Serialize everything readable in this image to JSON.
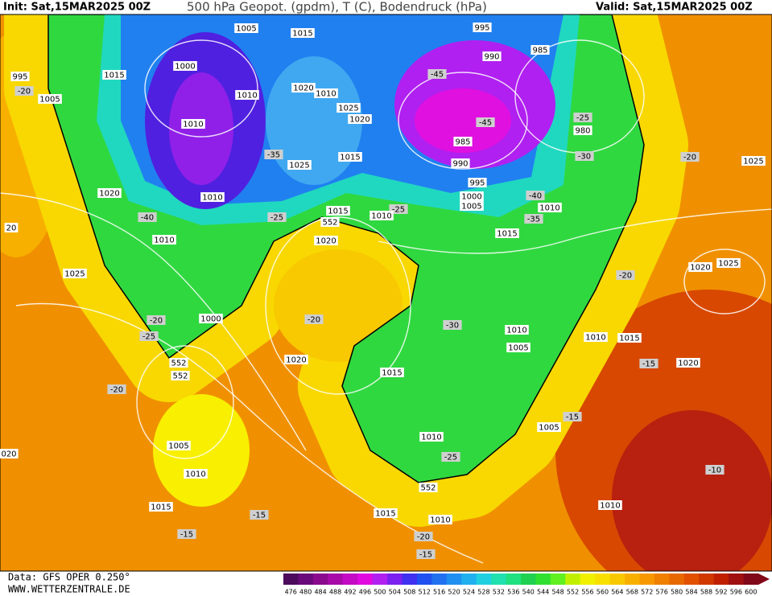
{
  "header": {
    "init": "Init: Sat,15MAR2025 00Z",
    "title": "500 hPa Geopot. (gpdm), T (C), Bodendruck (hPa)",
    "valid": "Valid: Sat,15MAR2025 00Z"
  },
  "footer": {
    "data": "Data: GFS OPER 0.250°",
    "site": "WWW.WETTERZENTRALE.DE"
  },
  "scale": {
    "labels": [
      476,
      480,
      484,
      488,
      492,
      496,
      500,
      504,
      508,
      512,
      516,
      520,
      524,
      528,
      532,
      536,
      540,
      544,
      548,
      552,
      556,
      560,
      564,
      568,
      572,
      576,
      580,
      584,
      588,
      592,
      596,
      600
    ],
    "colors": [
      "#4b0a5c",
      "#6a0a7a",
      "#8a0a8e",
      "#a80aa8",
      "#c40ac4",
      "#e00ae0",
      "#b020f0",
      "#7a20f0",
      "#4030f0",
      "#2050f0",
      "#2070f0",
      "#2090f0",
      "#20b0f0",
      "#20d0e0",
      "#20e0b0",
      "#20e080",
      "#20d050",
      "#30e030",
      "#60f020",
      "#c0f000",
      "#f0f000",
      "#f8e000",
      "#f8c800",
      "#f8b000",
      "#f89800",
      "#f08000",
      "#e86800",
      "#e05000",
      "#d03800",
      "#c02000",
      "#a01010",
      "#800818"
    ]
  },
  "map": {
    "labels": [
      "1005",
      "1015",
      "995",
      "990",
      "985",
      "1000",
      "995",
      "1015",
      "-45",
      "-20",
      "1005",
      "1010",
      "1020",
      "1010",
      "1025",
      "1020",
      "-25",
      "1010",
      "-45",
      "980",
      "985",
      "-35",
      "1015",
      "1025",
      "990",
      "-30",
      "-20",
      "1025",
      "995",
      "1020",
      "1010",
      "1000",
      "-40",
      "1005",
      "1010",
      "1015",
      "-25",
      "-25",
      "1010",
      "-40",
      "552",
      "-35",
      "20",
      "1015",
      "1010",
      "1020",
      "1020",
      "1025",
      "1025",
      "-20",
      "-20",
      "1000",
      "-20",
      "-30",
      "1010",
      "-25",
      "1010",
      "1015",
      "1005",
      "552",
      "1020",
      "-15",
      "1020",
      "1015",
      "552",
      "-20",
      "-15",
      "1005",
      "1010",
      "1005",
      "020",
      "-25",
      "-10",
      "1010",
      "552",
      "1015",
      "1010",
      "-15",
      "1015",
      "1010",
      "-15",
      "-20",
      "-15"
    ]
  }
}
